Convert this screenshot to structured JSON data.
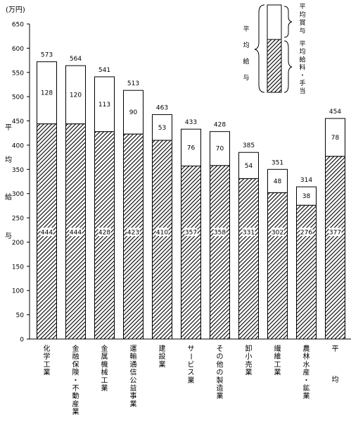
{
  "chart_data": {
    "type": "bar",
    "stacked": true,
    "unit_label": "(万円)",
    "ylabel": "平均給与",
    "ylim": [
      0,
      650
    ],
    "yticks": [
      0,
      50,
      100,
      150,
      200,
      250,
      300,
      350,
      400,
      450,
      500,
      550,
      600,
      650
    ],
    "categories": [
      "化学工業",
      "金融保険・不動産業",
      "金属機械工業",
      "運輸通信公益事業",
      "建設業",
      "サービス業",
      "その他の製造業",
      "卸小売業",
      "繊維工業",
      "農林水産・鉱業",
      "平均"
    ],
    "series": [
      {
        "name": "平均給料・手当",
        "pattern": "hatched",
        "values": [
          444,
          444,
          428,
          423,
          410,
          357,
          358,
          331,
          302,
          276,
          377
        ]
      },
      {
        "name": "平均賞与",
        "pattern": "white",
        "values": [
          128,
          120,
          113,
          90,
          53,
          76,
          70,
          54,
          48,
          38,
          78
        ]
      }
    ],
    "totals": [
      573,
      564,
      541,
      513,
      463,
      433,
      428,
      385,
      351,
      314,
      454
    ],
    "base_labels": [
      "444",
      "444",
      "428",
      "423",
      "410",
      "357",
      "358",
      "331",
      "302",
      "276",
      "377"
    ],
    "legend": {
      "position": "top-right",
      "group_label": "平均給与",
      "upper_label": "平均賞与",
      "lower_label": "平均給料・手当"
    }
  }
}
